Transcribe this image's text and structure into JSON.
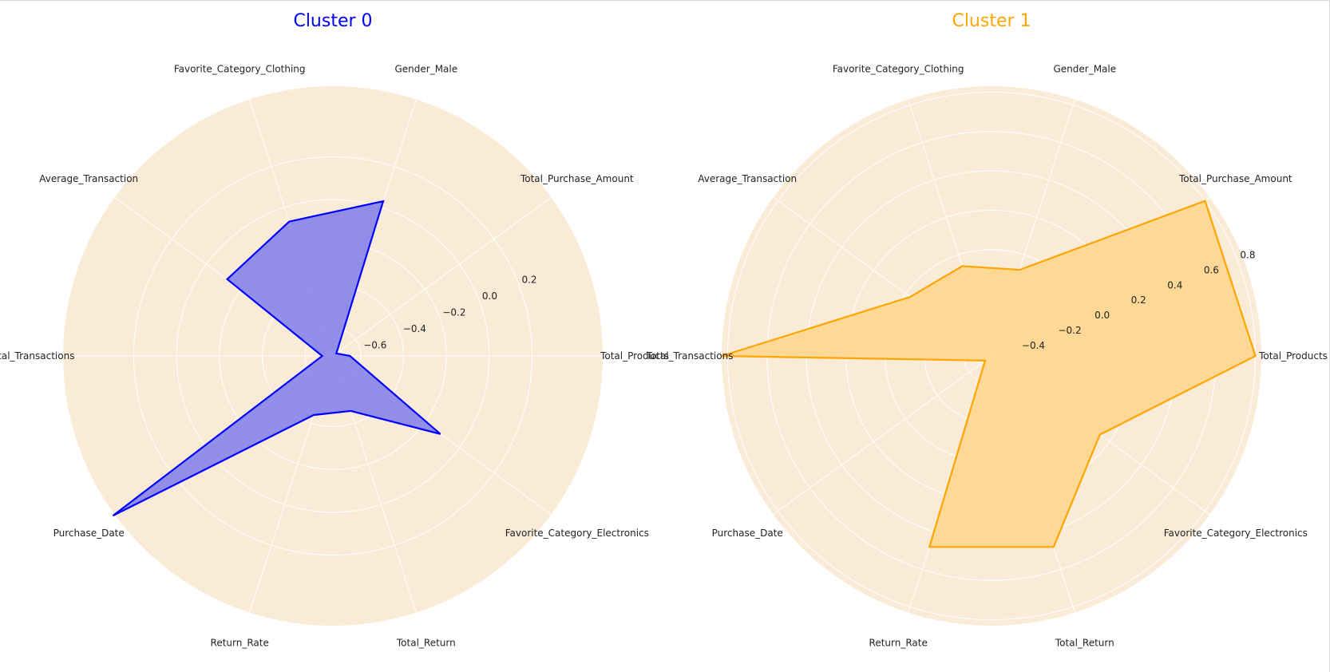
{
  "figure": {
    "background": "#ffffff",
    "panel_background": "#faebd7",
    "grid_color": "#ffffff"
  },
  "chart_data": [
    {
      "type": "radar",
      "title": "Cluster 0",
      "color": "#0000ff",
      "fill": "#6f6fee",
      "categories": [
        "Total_Products",
        "Total_Purchase_Amount",
        "Gender_Male",
        "Favorite_Category_Clothing",
        "Average_Transaction",
        "Total_Transactions",
        "Purchase_Date",
        "Return_Rate",
        "Total_Return",
        "Favorite_Category_Electronics"
      ],
      "values": [
        -0.65,
        -0.71,
        0.03,
        -0.07,
        -0.12,
        -0.68,
        0.54,
        -0.44,
        -0.46,
        -0.11
      ],
      "rlim": [
        -0.73,
        0.53
      ],
      "rticks": [
        -0.6,
        -0.4,
        -0.2,
        0.0,
        0.2
      ],
      "rtick_labels": [
        "−0.6",
        "−0.4",
        "−0.2",
        "0.0",
        "0.2"
      ],
      "grid": true
    },
    {
      "type": "radar",
      "title": "Cluster 1",
      "color": "#ffa500",
      "fill": "#ffd27f",
      "categories": [
        "Total_Products",
        "Total_Purchase_Amount",
        "Gender_Male",
        "Favorite_Category_Clothing",
        "Average_Transaction",
        "Total_Transactions",
        "Purchase_Date",
        "Return_Rate",
        "Total_Return",
        "Favorite_Category_Electronics"
      ],
      "values": [
        0.8,
        0.8,
        -0.08,
        -0.06,
        -0.03,
        0.83,
        -0.5,
        0.48,
        0.48,
        0.14
      ],
      "rlim": [
        -0.54,
        0.83
      ],
      "rticks": [
        -0.4,
        -0.2,
        0.0,
        0.2,
        0.4,
        0.6,
        0.8
      ],
      "rtick_labels": [
        "−0.4",
        "−0.2",
        "0.0",
        "0.2",
        "0.4",
        "0.6",
        "0.8"
      ],
      "grid": true
    }
  ]
}
